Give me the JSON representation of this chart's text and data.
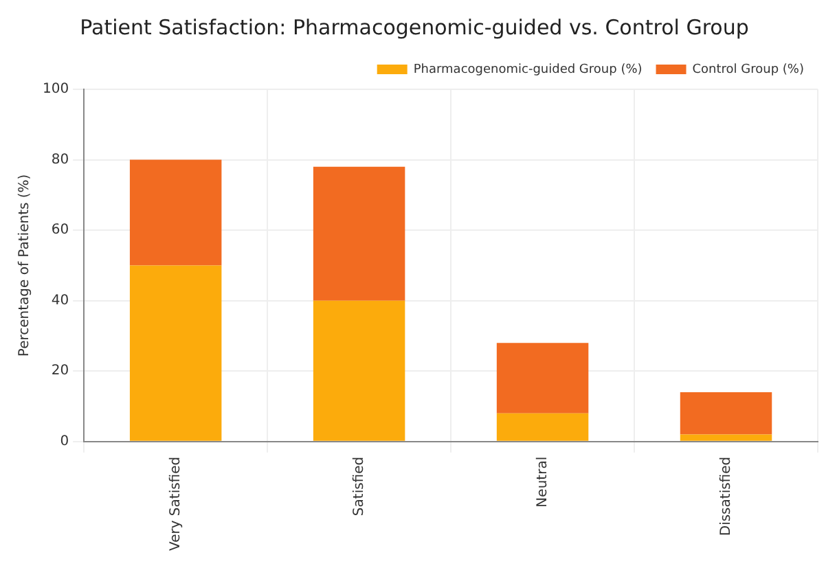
{
  "chart_data": {
    "type": "bar",
    "title": "Patient Satisfaction: Pharmacogenomic-guided vs. Control Group",
    "ylabel": "Percentage of Patients (%)",
    "categories": [
      "Very Satisfied",
      "Satisfied",
      "Neutral",
      "Dissatisfied"
    ],
    "stacked": true,
    "series": [
      {
        "name": "Pharmacogenomic-guided Group (%)",
        "color": "#fcab0c",
        "values": [
          50,
          40,
          8,
          2
        ]
      },
      {
        "name": "Control Group (%)",
        "color": "#f26b21",
        "values": [
          30,
          38,
          20,
          12
        ]
      }
    ],
    "ylim": [
      0,
      100
    ],
    "yticks": [
      0,
      20,
      40,
      60,
      80,
      100
    ],
    "grid": true,
    "legend": "top right"
  }
}
